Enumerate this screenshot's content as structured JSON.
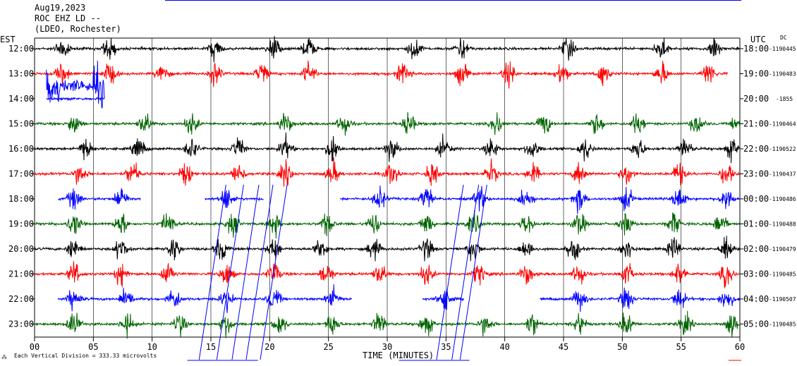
{
  "header": {
    "date": "Aug19,2023",
    "station": "ROC EHZ LD --",
    "network": "(LDEO, Rochester)"
  },
  "labels": {
    "left_zone": "EST",
    "right_zone": "UTC",
    "dc": "DC",
    "xlabel": "TIME (MINUTES)",
    "footer": "Each Vertical Division =  333.33 microvolts",
    "footer_mark": "⁂"
  },
  "colors": {
    "black": "#000000",
    "red": "#ff0000",
    "blue": "#0000ff",
    "green": "#006400",
    "grid": "#000000"
  },
  "chart_data": {
    "type": "line",
    "xlim": [
      0,
      60
    ],
    "xticks": [
      "00",
      "05",
      "10",
      "15",
      "20",
      "25",
      "30",
      "35",
      "40",
      "45",
      "50",
      "55",
      "60"
    ],
    "rows": [
      {
        "est": "12:00",
        "utc": "18:00",
        "count": "-1190445",
        "color": "black"
      },
      {
        "est": "13:00",
        "utc": "19:00",
        "count": "-1190483",
        "color": "red"
      },
      {
        "est": "14:00",
        "utc": "20:00",
        "count": "-1855",
        "color": "blue"
      },
      {
        "est": "15:00",
        "utc": "21:00",
        "count": "-1190464",
        "color": "green"
      },
      {
        "est": "16:00",
        "utc": "22:00",
        "count": "-1190522",
        "color": "black"
      },
      {
        "est": "17:00",
        "utc": "23:00",
        "count": "-1190437",
        "color": "red"
      },
      {
        "est": "18:00",
        "utc": "00:00",
        "count": "-1190486",
        "color": "blue"
      },
      {
        "est": "19:00",
        "utc": "01:00",
        "count": "-1190488",
        "color": "green"
      },
      {
        "est": "20:00",
        "utc": "02:00",
        "count": "-1190479",
        "color": "black"
      },
      {
        "est": "21:00",
        "utc": "03:00",
        "count": "-1190485",
        "color": "red"
      },
      {
        "est": "22:00",
        "utc": "04:00",
        "count": "-1190507",
        "color": "blue"
      },
      {
        "est": "23:00",
        "utc": "05:00",
        "count": "-1190485",
        "color": "green"
      }
    ],
    "segments": [
      {
        "row": 0,
        "from": 0,
        "to": 60
      },
      {
        "row": 1,
        "from": 0,
        "to": 59
      },
      {
        "row": 2,
        "from": 1.0,
        "to": 6.0
      },
      {
        "row": 3,
        "from": 0,
        "to": 60
      },
      {
        "row": 4,
        "from": 0,
        "to": 60
      },
      {
        "row": 5,
        "from": 0,
        "to": 60
      },
      {
        "row": 6,
        "from": 2.0,
        "to": 9.0
      },
      {
        "row": 6,
        "from": 14.5,
        "to": 19.5
      },
      {
        "row": 6,
        "from": 26.0,
        "to": 60
      },
      {
        "row": 7,
        "from": 0,
        "to": 60
      },
      {
        "row": 8,
        "from": 0,
        "to": 60
      },
      {
        "row": 9,
        "from": 0,
        "to": 60
      },
      {
        "row": 10,
        "from": 2.0,
        "to": 27.0
      },
      {
        "row": 10,
        "from": 33.0,
        "to": 36.5
      },
      {
        "row": 10,
        "from": 43.0,
        "to": 60
      },
      {
        "row": 11,
        "from": 0,
        "to": 60
      }
    ],
    "bursts_minutes": [
      [
        2.0,
        6.0,
        15.0,
        20.0,
        23.0,
        32.0,
        36.0,
        45.0,
        53.0,
        57.5
      ],
      [
        2.0,
        6.0,
        10.5,
        15.0,
        19.0,
        23.0,
        31.0,
        36.0,
        40.0,
        44.5,
        48.0,
        53.0,
        57.0
      ],
      [],
      [
        3.0,
        9.0,
        13.0,
        21.0,
        26.0,
        31.5,
        39.0,
        43.0,
        47.5,
        51.0,
        56.0,
        59.5
      ],
      [
        4.0,
        8.5,
        13.0,
        17.0,
        21.0,
        25.0,
        30.0,
        34.5,
        38.5,
        42.0,
        46.5,
        51.0,
        55.0,
        59.0
      ],
      [
        3.5,
        8.0,
        12.5,
        17.0,
        21.0,
        25.0,
        30.0,
        33.5,
        38.5,
        42.0,
        46.0,
        50.0,
        54.5,
        58.5
      ],
      [
        3.0,
        7.0,
        16.0,
        20.0,
        29.0,
        33.0,
        37.5,
        41.5,
        46.0,
        50.0,
        54.5,
        58.5
      ],
      [
        3.0,
        7.0,
        11.0,
        16.5,
        20.0,
        24.5,
        28.5,
        33.0,
        37.0,
        41.5,
        46.0,
        50.0,
        54.0,
        58.0
      ],
      [
        3.0,
        7.0,
        11.5,
        15.5,
        20.0,
        24.0,
        28.5,
        33.0,
        37.0,
        41.5,
        45.5,
        50.0,
        54.0,
        58.5
      ],
      [
        3.0,
        7.0,
        11.0,
        16.0,
        20.0,
        24.5,
        29.0,
        33.0,
        37.5,
        41.5,
        46.0,
        50.0,
        54.5,
        58.5
      ],
      [
        3.0,
        7.5,
        11.5,
        16.0,
        20.0,
        25.0,
        34.5,
        46.0,
        50.0,
        54.5,
        58.5
      ],
      [
        3.0,
        7.5,
        12.0,
        16.0,
        20.5,
        25.0,
        29.0,
        33.0,
        38.0,
        42.0,
        46.0,
        50.0,
        55.0,
        59.0
      ]
    ],
    "spikes_minutes": [
      14.0,
      15.5,
      16.8,
      18.0,
      19.2,
      34.2,
      35.5,
      36.2
    ],
    "gap_markers_minutes": [
      13.0,
      19.0,
      31.0,
      37.0
    ]
  }
}
